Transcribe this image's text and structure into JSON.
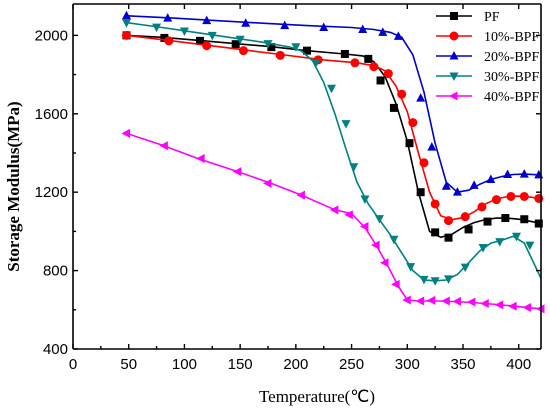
{
  "chart_data": {
    "type": "line",
    "xlabel": "Temperature(℃)",
    "ylabel": "Storage Modulus(MPa)",
    "xlim": [
      0,
      420
    ],
    "ylim": [
      400,
      2160
    ],
    "xticks": [
      0,
      50,
      100,
      150,
      200,
      250,
      300,
      350,
      400
    ],
    "yticks": [
      400,
      800,
      1200,
      1600,
      2000
    ],
    "legend_position": "top-right",
    "grid": false,
    "series": [
      {
        "name": "PF",
        "color": "#000000",
        "marker": "square",
        "x": [
          48,
          80,
          112,
          145,
          178,
          210,
          244,
          260,
          270,
          280,
          290,
          300,
          310,
          320,
          330,
          340,
          350,
          360,
          370,
          380,
          390,
          400,
          410,
          420
        ],
        "y": [
          2000,
          1990,
          1975,
          1958,
          1942,
          1922,
          1905,
          1895,
          1865,
          1790,
          1650,
          1460,
          1200,
          1000,
          970,
          985,
          1020,
          1045,
          1060,
          1068,
          1068,
          1062,
          1052,
          1040
        ],
        "markers_x": [
          48,
          82,
          114,
          146,
          178,
          210,
          244,
          265,
          276,
          288,
          302,
          312,
          325,
          337,
          355,
          372,
          388,
          405,
          418
        ],
        "markers_y": [
          2000,
          1987,
          1972,
          1955,
          1940,
          1922,
          1905,
          1880,
          1770,
          1630,
          1450,
          1200,
          995,
          968,
          1010,
          1050,
          1068,
          1062,
          1040
        ]
      },
      {
        "name": "10%-BPF",
        "color": "#ff0000",
        "marker": "circle",
        "x": [
          48,
          85,
          120,
          155,
          190,
          225,
          255,
          270,
          280,
          290,
          300,
          310,
          320,
          330,
          340,
          350,
          360,
          370,
          380,
          390,
          400,
          410,
          420
        ],
        "y": [
          2000,
          1975,
          1950,
          1925,
          1900,
          1875,
          1860,
          1845,
          1820,
          1740,
          1610,
          1400,
          1200,
          1080,
          1060,
          1070,
          1100,
          1140,
          1165,
          1178,
          1180,
          1175,
          1168
        ],
        "markers_x": [
          48,
          86,
          120,
          153,
          186,
          220,
          253,
          270,
          283,
          295,
          305,
          315,
          325,
          337,
          352,
          367,
          380,
          393,
          405,
          418
        ],
        "markers_y": [
          2000,
          1972,
          1947,
          1922,
          1898,
          1875,
          1860,
          1840,
          1805,
          1700,
          1555,
          1350,
          1140,
          1055,
          1075,
          1125,
          1162,
          1178,
          1178,
          1168
        ]
      },
      {
        "name": "20%-BPF",
        "color": "#0000cc",
        "marker": "triangle-up",
        "x": [
          48,
          90,
          130,
          170,
          210,
          250,
          270,
          285,
          295,
          305,
          315,
          325,
          335,
          345,
          355,
          365,
          375,
          385,
          395,
          405,
          420
        ],
        "y": [
          2100,
          2088,
          2075,
          2062,
          2050,
          2040,
          2030,
          2015,
          1990,
          1900,
          1710,
          1450,
          1250,
          1200,
          1210,
          1240,
          1265,
          1280,
          1290,
          1292,
          1288
        ],
        "markers_x": [
          48,
          85,
          120,
          155,
          190,
          225,
          260,
          278,
          292,
          312,
          322,
          335,
          345,
          360,
          375,
          390,
          405,
          418
        ],
        "markers_y": [
          2100,
          2088,
          2075,
          2062,
          2050,
          2040,
          2030,
          2015,
          1995,
          1680,
          1430,
          1230,
          1200,
          1235,
          1265,
          1290,
          1292,
          1288
        ]
      },
      {
        "name": "30%-BPF",
        "color": "#008080",
        "marker": "triangle-down",
        "x": [
          48,
          80,
          110,
          140,
          170,
          195,
          205,
          215,
          225,
          235,
          245,
          255,
          265,
          275,
          285,
          295,
          305,
          315,
          325,
          335,
          345,
          355,
          365,
          375,
          385,
          395,
          405,
          420
        ],
        "y": [
          2065,
          2040,
          2015,
          1990,
          1965,
          1940,
          1920,
          1870,
          1760,
          1600,
          1420,
          1250,
          1140,
          1060,
          980,
          890,
          800,
          752,
          748,
          752,
          780,
          840,
          900,
          940,
          955,
          975,
          940,
          760
        ],
        "markers_x": [
          48,
          75,
          100,
          125,
          150,
          175,
          200,
          218,
          232,
          245,
          252,
          262,
          275,
          288,
          303,
          315,
          325,
          337,
          352,
          368,
          383,
          398,
          410
        ],
        "markers_y": [
          2065,
          2042,
          2022,
          2000,
          1980,
          1958,
          1942,
          1860,
          1730,
          1550,
          1330,
          1165,
          1065,
          960,
          820,
          755,
          748,
          758,
          818,
          918,
          948,
          975,
          930
        ]
      },
      {
        "name": "40%-BPF",
        "color": "#ff00ff",
        "marker": "triangle-left",
        "x": [
          48,
          80,
          112,
          145,
          178,
          205,
          235,
          250,
          262,
          272,
          282,
          292,
          300,
          310,
          330,
          350,
          370,
          390,
          410,
          420
        ],
        "y": [
          1500,
          1440,
          1372,
          1310,
          1245,
          1185,
          1110,
          1090,
          1020,
          930,
          830,
          720,
          650,
          645,
          645,
          640,
          632,
          622,
          610,
          605
        ],
        "markers_x": [
          48,
          82,
          115,
          148,
          175,
          205,
          235,
          248,
          262,
          272,
          280,
          290,
          300,
          312,
          322,
          335,
          345,
          358,
          370,
          383,
          395,
          408,
          420
        ],
        "markers_y": [
          1500,
          1437,
          1372,
          1305,
          1245,
          1185,
          1110,
          1085,
          1025,
          930,
          840,
          730,
          650,
          645,
          648,
          645,
          643,
          640,
          632,
          625,
          618,
          612,
          605
        ]
      }
    ]
  }
}
